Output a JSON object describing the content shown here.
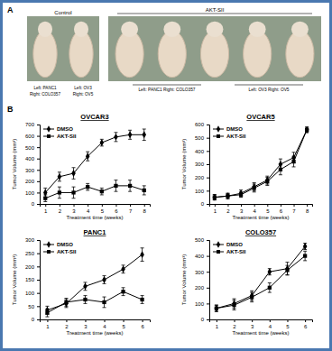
{
  "chart_data": [
    {
      "type": "line",
      "title": "OVCAR3",
      "x": [
        1,
        2,
        3,
        4,
        5,
        6,
        7,
        8
      ],
      "xlim": [
        0.6,
        8.4
      ],
      "xticks": [
        1,
        2,
        3,
        4,
        5,
        6,
        7,
        8
      ],
      "ylim": [
        0,
        700
      ],
      "yticks": [
        0,
        100,
        200,
        300,
        400,
        500,
        600,
        700
      ],
      "x_label": "Treatment time (weeks)",
      "y_label": "Tumor Volume (mm³)",
      "legend": "upper left",
      "series": [
        {
          "name": "DMSO",
          "color": "#000000",
          "marker": "diamond",
          "values": [
            100,
            240,
            270,
            420,
            540,
            590,
            610,
            610
          ],
          "errors": [
            40,
            40,
            50,
            40,
            30,
            40,
            40,
            50
          ]
        },
        {
          "name": "AKT-SII",
          "color": "#000000",
          "marker": "square",
          "values": [
            50,
            100,
            100,
            150,
            110,
            160,
            160,
            120
          ],
          "errors": [
            30,
            50,
            50,
            30,
            30,
            50,
            50,
            40
          ]
        }
      ]
    },
    {
      "type": "line",
      "title": "OVCAR5",
      "x": [
        1,
        2,
        3,
        4,
        5,
        6,
        7,
        8
      ],
      "xlim": [
        0.6,
        8.4
      ],
      "xticks": [
        1,
        2,
        3,
        4,
        5,
        6,
        7,
        8
      ],
      "ylim": [
        0,
        600
      ],
      "yticks": [
        0,
        100,
        200,
        300,
        400,
        500,
        600
      ],
      "x_label": "Treatment time (weeks)",
      "y_label": "Tumor Volume (mm³)",
      "legend": "upper left",
      "series": [
        {
          "name": "DMSO",
          "color": "#000000",
          "marker": "diamond",
          "values": [
            50,
            60,
            80,
            130,
            180,
            300,
            350,
            560
          ],
          "errors": [
            20,
            20,
            25,
            30,
            30,
            40,
            40,
            20
          ]
        },
        {
          "name": "AKT-SII",
          "color": "#000000",
          "marker": "square",
          "values": [
            50,
            60,
            70,
            120,
            170,
            260,
            320,
            560
          ],
          "errors": [
            20,
            20,
            20,
            30,
            30,
            40,
            40,
            20
          ]
        }
      ]
    },
    {
      "type": "line",
      "title": "PANC1",
      "x": [
        1,
        2,
        3,
        4,
        5,
        6
      ],
      "xlim": [
        0.6,
        6.4
      ],
      "xticks": [
        1,
        2,
        3,
        4,
        5,
        6
      ],
      "ylim": [
        0,
        300
      ],
      "yticks": [
        0,
        50,
        100,
        150,
        200,
        250,
        300
      ],
      "x_label": "Treatment time (weeks)",
      "y_label": "Tumor Volume (mm³)",
      "legend": "upper left",
      "series": [
        {
          "name": "DMSO",
          "color": "#000000",
          "marker": "diamond",
          "values": [
            35,
            60,
            125,
            150,
            190,
            245
          ],
          "errors": [
            15,
            15,
            15,
            15,
            15,
            25
          ]
        },
        {
          "name": "AKT-SII",
          "color": "#000000",
          "marker": "square",
          "values": [
            25,
            65,
            75,
            65,
            105,
            75
          ],
          "errors": [
            15,
            15,
            15,
            20,
            15,
            15
          ]
        }
      ]
    },
    {
      "type": "line",
      "title": "COLO357",
      "x": [
        1,
        2,
        3,
        4,
        5,
        6
      ],
      "xlim": [
        0.6,
        6.4
      ],
      "xticks": [
        1,
        2,
        3,
        4,
        5,
        6
      ],
      "ylim": [
        0,
        500
      ],
      "yticks": [
        0,
        100,
        200,
        300,
        400,
        500
      ],
      "x_label": "Treatment time (weeks)",
      "y_label": "Tumor Volume (mm³)",
      "legend": "upper left",
      "series": [
        {
          "name": "DMSO",
          "color": "#000000",
          "marker": "diamond",
          "values": [
            70,
            100,
            150,
            300,
            320,
            460
          ],
          "errors": [
            20,
            30,
            30,
            20,
            40,
            20
          ]
        },
        {
          "name": "AKT-SII",
          "color": "#000000",
          "marker": "square",
          "values": [
            70,
            90,
            140,
            200,
            310,
            400
          ],
          "errors": [
            20,
            30,
            30,
            30,
            30,
            30
          ]
        }
      ]
    }
  ],
  "figure": {
    "panel_labels": [
      "A",
      "B"
    ],
    "photos": {
      "control": {
        "label": "Control",
        "captions": [
          "Left: PANC1",
          "Right: COLO357",
          "Left: OV3",
          "Right: OV5"
        ]
      },
      "treated": {
        "label": "AKT-SII",
        "captions": [
          "Left: PANC1   Right: COLO357",
          "Left: OV3   Right: OV5"
        ]
      }
    }
  }
}
